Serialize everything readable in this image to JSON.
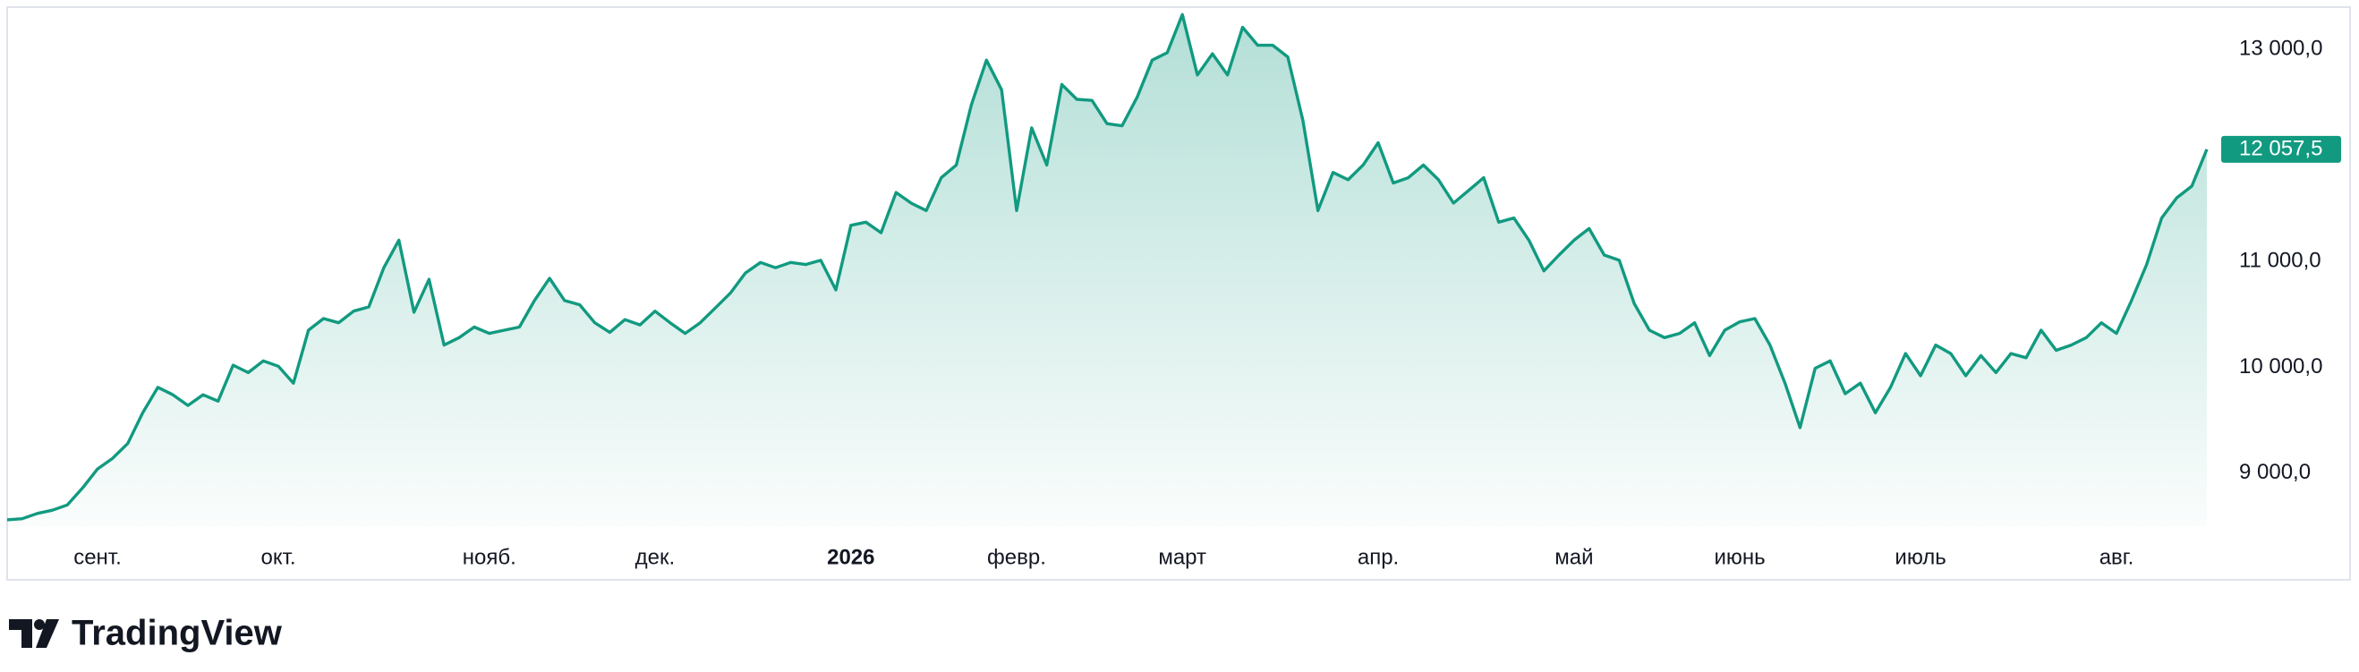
{
  "chart_data": {
    "type": "area",
    "categories": [
      null,
      null,
      null,
      null,
      null,
      null,
      "сент.",
      null,
      null,
      null,
      null,
      null,
      null,
      null,
      null,
      null,
      null,
      null,
      "окт.",
      null,
      null,
      null,
      null,
      null,
      null,
      null,
      null,
      null,
      null,
      null,
      null,
      null,
      "нояб.",
      null,
      null,
      null,
      null,
      null,
      null,
      null,
      null,
      null,
      null,
      "дек.",
      null,
      null,
      null,
      null,
      null,
      null,
      null,
      null,
      null,
      null,
      null,
      null,
      "2026",
      null,
      null,
      null,
      null,
      null,
      null,
      null,
      null,
      null,
      null,
      "февр.",
      null,
      null,
      null,
      null,
      null,
      null,
      null,
      null,
      null,
      null,
      "март",
      null,
      null,
      null,
      null,
      null,
      null,
      null,
      null,
      null,
      null,
      null,
      null,
      "апр.",
      null,
      null,
      null,
      null,
      null,
      null,
      null,
      null,
      null,
      null,
      null,
      null,
      "май",
      null,
      null,
      null,
      null,
      null,
      null,
      null,
      null,
      null,
      null,
      "июнь",
      null,
      null,
      null,
      null,
      null,
      null,
      null,
      null,
      null,
      null,
      null,
      "июль",
      null,
      null,
      null,
      null,
      null,
      null,
      null,
      null,
      null,
      null,
      null,
      null,
      "авг.",
      null,
      null,
      null,
      null,
      null,
      null
    ],
    "values": [
      8560,
      8570,
      8620,
      8650,
      8700,
      8860,
      9040,
      9140,
      9280,
      9570,
      9810,
      9740,
      9640,
      9740,
      9680,
      10020,
      9950,
      10060,
      10010,
      9850,
      10350,
      10460,
      10420,
      10530,
      10570,
      10940,
      11200,
      10520,
      10830,
      10210,
      10280,
      10380,
      10320,
      10350,
      10380,
      10630,
      10840,
      10630,
      10590,
      10420,
      10330,
      10450,
      10400,
      10530,
      10420,
      10320,
      10420,
      10560,
      10700,
      10890,
      10990,
      10940,
      10990,
      10970,
      11010,
      10730,
      11340,
      11370,
      11270,
      11650,
      11550,
      11480,
      11790,
      11910,
      12480,
      12900,
      12620,
      11480,
      12260,
      11910,
      12670,
      12530,
      12520,
      12300,
      12280,
      12550,
      12900,
      12970,
      13330,
      12760,
      12960,
      12760,
      13210,
      13040,
      13040,
      12930,
      12330,
      11480,
      11840,
      11770,
      11910,
      12120,
      11740,
      11790,
      11910,
      11770,
      11550,
      11670,
      11790,
      11370,
      11410,
      11200,
      10910,
      11060,
      11200,
      11310,
      11060,
      11010,
      10600,
      10350,
      10280,
      10320,
      10420,
      10110,
      10350,
      10430,
      10460,
      10210,
      9850,
      9430,
      9990,
      10060,
      9750,
      9850,
      9570,
      9810,
      10130,
      9920,
      10210,
      10130,
      9920,
      10110,
      9950,
      10130,
      10090,
      10350,
      10160,
      10210,
      10280,
      10420,
      10320,
      10630,
      10970,
      11410,
      11600,
      11710,
      12057.5
    ],
    "color": "#119a80",
    "last_label": "12 057,5",
    "ylim": [
      8500,
      13400
    ],
    "yticks": [
      {
        "value": 9000,
        "label": "9 000,0"
      },
      {
        "value": 10000,
        "label": "10 000,0"
      },
      {
        "value": 11000,
        "label": "11 000,0"
      },
      {
        "value": 13000,
        "label": "13 000,0"
      }
    ],
    "grid": false
  },
  "logo_text": "TradingView"
}
